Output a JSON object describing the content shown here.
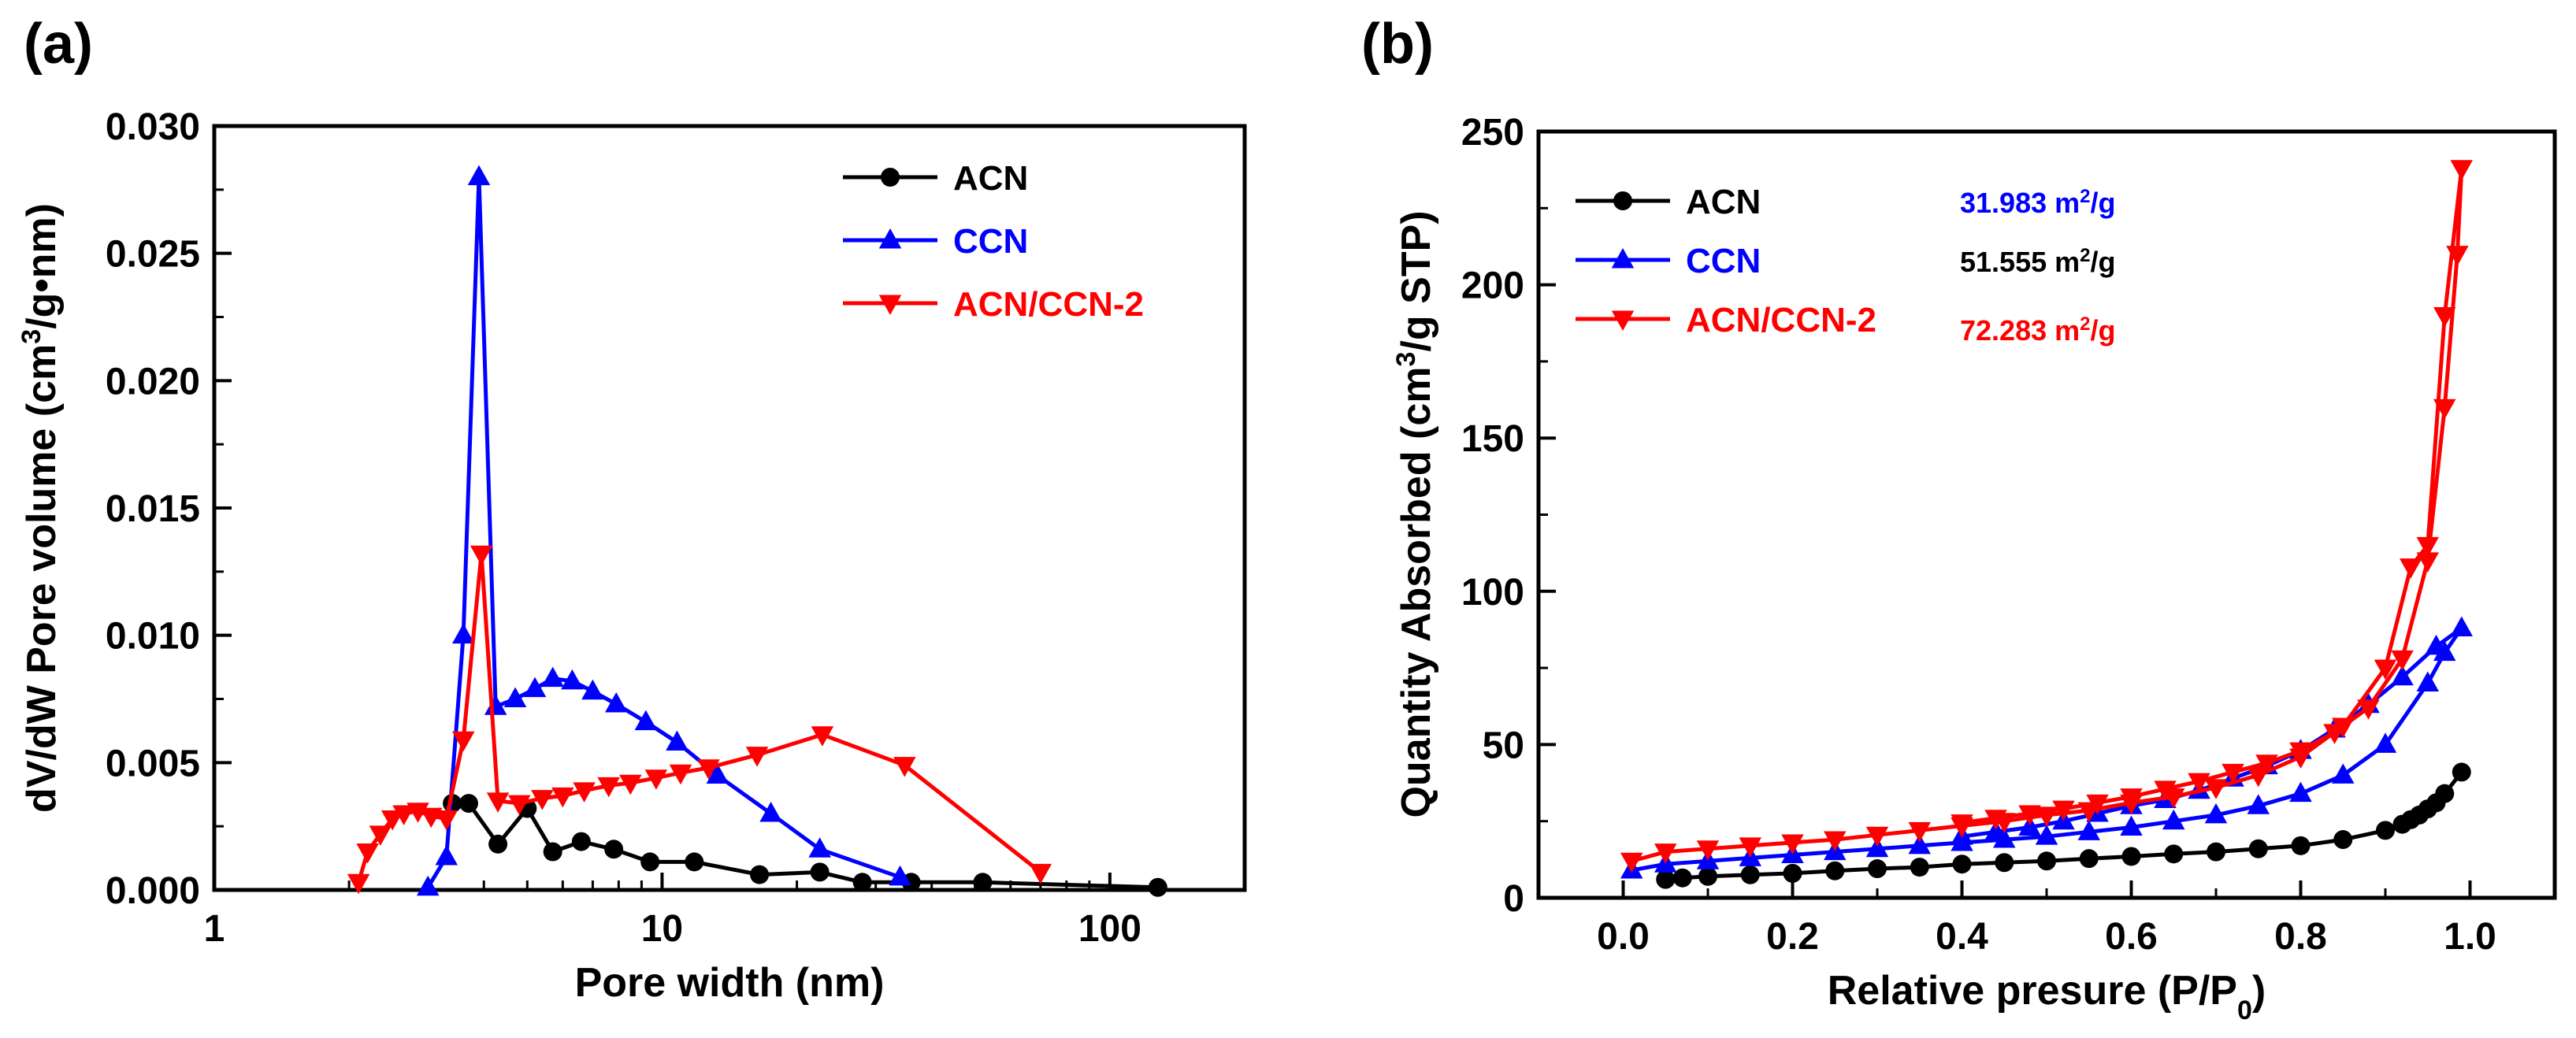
{
  "chart_data": [
    {
      "panel": "(a)",
      "type": "line",
      "xscale": "log",
      "xlabel": "Pore width (nm)",
      "ylabel_parts": [
        "dV/dW Pore volume (cm",
        "3",
        "/g•nm)"
      ],
      "xlim": [
        1,
        200
      ],
      "ylim": [
        0,
        0.03
      ],
      "xticks": [
        1,
        10,
        100
      ],
      "xtick_labels": [
        "1",
        "10",
        "100"
      ],
      "yticks": [
        0,
        0.005,
        0.01,
        0.015,
        0.02,
        0.025,
        0.03
      ],
      "ytick_labels": [
        "0.000",
        "0.005",
        "0.010",
        "0.015",
        "0.020",
        "0.025",
        "0.030"
      ],
      "legend_position": "top-right",
      "series": [
        {
          "name": "ACN",
          "color": "#000000",
          "marker": "circle",
          "x": [
            3.4,
            3.7,
            4.3,
            5.0,
            5.7,
            6.6,
            7.8,
            9.4,
            11.8,
            16.5,
            22.5,
            28.0,
            36.0,
            52.0,
            128.0
          ],
          "y": [
            0.0034,
            0.0034,
            0.0018,
            0.0032,
            0.0015,
            0.0019,
            0.0016,
            0.0011,
            0.0011,
            0.0006,
            0.0007,
            0.0003,
            0.0003,
            0.0003,
            0.0001
          ]
        },
        {
          "name": "CCN",
          "color": "#0000ff",
          "marker": "triangle-up",
          "x": [
            3.0,
            3.3,
            3.6,
            3.9,
            4.25,
            4.7,
            5.2,
            5.7,
            6.3,
            7.0,
            7.9,
            9.2,
            10.8,
            13.3,
            17.5,
            22.5,
            34.0
          ],
          "y": [
            0.0001,
            0.0013,
            0.01,
            0.028,
            0.0072,
            0.0075,
            0.0079,
            0.0083,
            0.0082,
            0.0078,
            0.0073,
            0.0066,
            0.0058,
            0.0045,
            0.003,
            0.0016,
            0.0005
          ]
        },
        {
          "name": "ACN/CCN-2",
          "color": "#ff0000",
          "marker": "triangle-down",
          "x": [
            2.1,
            2.2,
            2.35,
            2.5,
            2.65,
            2.85,
            3.05,
            3.3,
            3.6,
            3.95,
            4.3,
            4.8,
            5.4,
            6.0,
            6.7,
            7.6,
            8.5,
            9.7,
            11.0,
            12.7,
            16.3,
            22.8,
            34.8,
            70.0
          ],
          "y": [
            0.0003,
            0.0015,
            0.0022,
            0.0028,
            0.003,
            0.0031,
            0.0029,
            0.0028,
            0.0059,
            0.0132,
            0.0035,
            0.0034,
            0.0036,
            0.0037,
            0.0039,
            0.0041,
            0.0042,
            0.0044,
            0.0046,
            0.0048,
            0.0053,
            0.0061,
            0.0049,
            0.0007
          ]
        }
      ]
    },
    {
      "panel": "(b)",
      "type": "line",
      "xscale": "linear",
      "xlabel_parts": [
        "Relative presure (P/P",
        "0",
        ")"
      ],
      "ylabel_parts": [
        "Quantity Absorbed (cm",
        "3",
        "/g STP)"
      ],
      "xlim": [
        -0.1,
        1.1
      ],
      "ylim": [
        0,
        250
      ],
      "xticks": [
        0,
        0.2,
        0.4,
        0.6,
        0.8,
        1.0
      ],
      "xtick_labels": [
        "0.0",
        "0.2",
        "0.4",
        "0.6",
        "0.8",
        "1.0"
      ],
      "yticks": [
        0,
        50,
        100,
        150,
        200,
        250
      ],
      "ytick_labels": [
        "0",
        "50",
        "100",
        "150",
        "200",
        "250"
      ],
      "legend_position": "top-left",
      "surface_areas": [
        {
          "value": "31.983",
          "unit_parts": [
            " m",
            "2",
            "/g"
          ],
          "color": "#0000ff"
        },
        {
          "value": "51.555",
          "unit_parts": [
            " m",
            "2",
            "/g"
          ],
          "color": "#000000"
        },
        {
          "value": "72.283",
          "unit_parts": [
            " m",
            "2",
            "/g"
          ],
          "color": "#ff0000"
        }
      ],
      "series": [
        {
          "name": "ACN",
          "color": "#000000",
          "marker": "circle",
          "x": [
            0.05,
            0.07,
            0.1,
            0.15,
            0.2,
            0.25,
            0.3,
            0.35,
            0.4,
            0.45,
            0.5,
            0.55,
            0.6,
            0.65,
            0.7,
            0.75,
            0.8,
            0.85,
            0.9,
            0.92,
            0.93,
            0.94,
            0.95,
            0.96,
            0.97,
            0.99
          ],
          "y": [
            6,
            6.5,
            7,
            7.5,
            8,
            8.8,
            9.5,
            10,
            11,
            11.5,
            12,
            12.8,
            13.5,
            14.3,
            15,
            16,
            17,
            19,
            22,
            24,
            25.5,
            27,
            29,
            31,
            34,
            41
          ]
        },
        {
          "name": "CCN",
          "color": "#0000ff",
          "marker": "triangle-up",
          "x": [
            0.01,
            0.05,
            0.1,
            0.15,
            0.2,
            0.25,
            0.3,
            0.35,
            0.4,
            0.45,
            0.5,
            0.55,
            0.6,
            0.65,
            0.7,
            0.75,
            0.8,
            0.85,
            0.9,
            0.95,
            0.97,
            0.99,
            0.96,
            0.92,
            0.88,
            0.84,
            0.8,
            0.76,
            0.72,
            0.68,
            0.64,
            0.6,
            0.56,
            0.52,
            0.48,
            0.44,
            0.4
          ],
          "y": [
            9,
            11,
            12,
            13,
            14,
            15,
            16,
            17,
            18,
            19,
            20,
            21.5,
            23,
            25,
            27,
            30,
            34,
            40,
            50,
            70,
            80,
            88,
            82,
            72,
            63,
            55,
            48,
            43,
            39,
            35,
            32,
            30,
            27.5,
            25,
            23,
            21.5,
            20
          ]
        },
        {
          "name": "ACN/CCN-2",
          "color": "#ff0000",
          "marker": "triangle-down",
          "x": [
            0.01,
            0.05,
            0.1,
            0.15,
            0.2,
            0.25,
            0.3,
            0.35,
            0.4,
            0.45,
            0.5,
            0.55,
            0.6,
            0.65,
            0.7,
            0.75,
            0.8,
            0.85,
            0.9,
            0.93,
            0.95,
            0.97,
            0.99,
            0.985,
            0.97,
            0.95,
            0.92,
            0.88,
            0.84,
            0.8,
            0.76,
            0.72,
            0.68,
            0.64,
            0.6,
            0.56,
            0.52,
            0.48,
            0.44,
            0.4
          ],
          "y": [
            12,
            15,
            16,
            17,
            18,
            19,
            20.5,
            22,
            23.5,
            25,
            27,
            28.5,
            31,
            33,
            36,
            40,
            46,
            56,
            75,
            108,
            115,
            190,
            238,
            210,
            160,
            110,
            78,
            62,
            54,
            48,
            44,
            41,
            38,
            35.5,
            33,
            31,
            29,
            27.5,
            26,
            24.5
          ]
        }
      ]
    }
  ]
}
